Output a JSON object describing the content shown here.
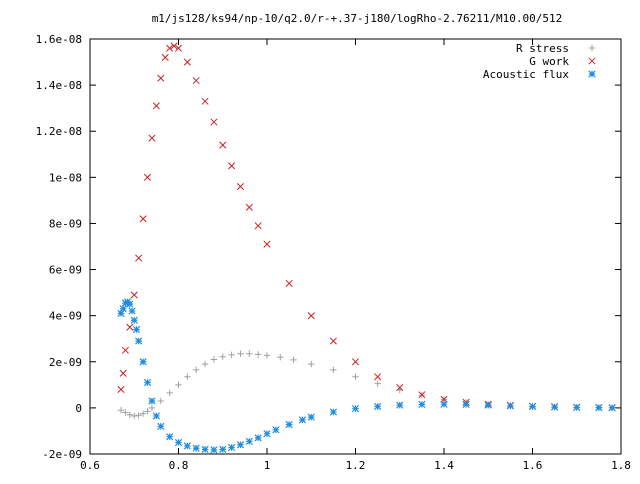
{
  "chart_data": {
    "type": "scatter",
    "title": "m1/js128/ks94/np-10/q2.0/r-+.37-j180/logRho-2.76211/M10.00/512",
    "xlabel": "",
    "ylabel": "",
    "xlim": [
      0.6,
      1.8
    ],
    "ylim": [
      -2e-09,
      1.6e-08
    ],
    "x_ticks": [
      0.6,
      0.8,
      1.0,
      1.2,
      1.4,
      1.6,
      1.8
    ],
    "x_tick_labels": [
      "0.6",
      "0.8",
      "1",
      "1.2",
      "1.4",
      "1.6",
      "1.8"
    ],
    "y_ticks": [
      -2e-09,
      0,
      2e-09,
      4e-09,
      6e-09,
      8e-09,
      1e-08,
      1.2e-08,
      1.4e-08,
      1.6e-08
    ],
    "y_tick_labels": [
      "-2e-09",
      "0",
      "2e-09",
      "4e-09",
      "6e-09",
      "8e-09",
      "1e-08",
      "1.2e-08",
      "1.4e-08",
      "1.6e-08"
    ],
    "grid": false,
    "legend_position": "top-right",
    "series": [
      {
        "name": "R stress",
        "marker": "plus",
        "color": "#a0a0a0",
        "x": [
          0.67,
          0.68,
          0.69,
          0.7,
          0.71,
          0.72,
          0.73,
          0.74,
          0.76,
          0.78,
          0.8,
          0.82,
          0.84,
          0.86,
          0.88,
          0.9,
          0.92,
          0.94,
          0.96,
          0.98,
          1.0,
          1.03,
          1.06,
          1.1,
          1.15,
          1.2,
          1.25,
          1.3,
          1.35,
          1.4,
          1.45,
          1.5,
          1.55,
          1.6,
          1.65,
          1.7,
          1.75,
          1.78
        ],
        "y": [
          -1e-10,
          -2e-10,
          -3e-10,
          -3.5e-10,
          -3.2e-10,
          -2.5e-10,
          -1.5e-10,
          0.0,
          3e-10,
          6.5e-10,
          1e-09,
          1.35e-09,
          1.65e-09,
          1.9e-09,
          2.1e-09,
          2.22e-09,
          2.3e-09,
          2.35e-09,
          2.35e-09,
          2.32e-09,
          2.28e-09,
          2.2e-09,
          2.08e-09,
          1.9e-09,
          1.65e-09,
          1.35e-09,
          1.05e-09,
          7.8e-10,
          5.5e-10,
          3.6e-10,
          2.3e-10,
          1.4e-10,
          8e-11,
          4e-11,
          2e-11,
          1e-11,
          5e-12,
          0.0
        ]
      },
      {
        "name": "G work",
        "marker": "cross",
        "color": "#cc2222",
        "x": [
          0.67,
          0.675,
          0.68,
          0.69,
          0.7,
          0.71,
          0.72,
          0.73,
          0.74,
          0.75,
          0.76,
          0.77,
          0.78,
          0.79,
          0.8,
          0.82,
          0.84,
          0.86,
          0.88,
          0.9,
          0.92,
          0.94,
          0.96,
          0.98,
          1.0,
          1.05,
          1.1,
          1.15,
          1.2,
          1.25,
          1.3,
          1.35,
          1.4,
          1.45,
          1.5,
          1.55,
          1.6,
          1.65,
          1.7,
          1.75,
          1.78
        ],
        "y": [
          8e-10,
          1.5e-09,
          2.5e-09,
          3.5e-09,
          4.9e-09,
          6.5e-09,
          8.2e-09,
          1e-08,
          1.17e-08,
          1.31e-08,
          1.43e-08,
          1.52e-08,
          1.56e-08,
          1.57e-08,
          1.56e-08,
          1.5e-08,
          1.42e-08,
          1.33e-08,
          1.24e-08,
          1.14e-08,
          1.05e-08,
          9.6e-09,
          8.7e-09,
          7.9e-09,
          7.1e-09,
          5.4e-09,
          4e-09,
          2.9e-09,
          2e-09,
          1.35e-09,
          8.8e-10,
          5.7e-10,
          3.7e-10,
          2.4e-10,
          1.6e-10,
          1.1e-10,
          7e-11,
          5e-11,
          3e-11,
          2e-11,
          1e-11
        ]
      },
      {
        "name": "Acoustic flux",
        "marker": "star",
        "color": "#1f8de0",
        "x": [
          0.67,
          0.675,
          0.68,
          0.685,
          0.69,
          0.695,
          0.7,
          0.705,
          0.71,
          0.72,
          0.73,
          0.74,
          0.75,
          0.76,
          0.78,
          0.8,
          0.82,
          0.84,
          0.86,
          0.88,
          0.9,
          0.92,
          0.94,
          0.96,
          0.98,
          1.0,
          1.02,
          1.05,
          1.08,
          1.1,
          1.15,
          1.2,
          1.25,
          1.3,
          1.35,
          1.4,
          1.45,
          1.5,
          1.55,
          1.6,
          1.65,
          1.7,
          1.75,
          1.78
        ],
        "y": [
          4.1e-09,
          4.3e-09,
          4.55e-09,
          4.6e-09,
          4.5e-09,
          4.2e-09,
          3.8e-09,
          3.4e-09,
          2.9e-09,
          2e-09,
          1.1e-09,
          3e-10,
          -3.5e-10,
          -8e-10,
          -1.25e-09,
          -1.5e-09,
          -1.65e-09,
          -1.75e-09,
          -1.8e-09,
          -1.82e-09,
          -1.8e-09,
          -1.72e-09,
          -1.6e-09,
          -1.45e-09,
          -1.3e-09,
          -1.12e-09,
          -9.5e-10,
          -7.2e-10,
          -5.2e-10,
          -4e-10,
          -1.8e-10,
          -3e-11,
          6e-11,
          1.2e-10,
          1.5e-10,
          1.6e-10,
          1.5e-10,
          1.2e-10,
          9e-11,
          6e-11,
          4e-11,
          2e-11,
          1e-11,
          5e-12
        ]
      }
    ]
  }
}
